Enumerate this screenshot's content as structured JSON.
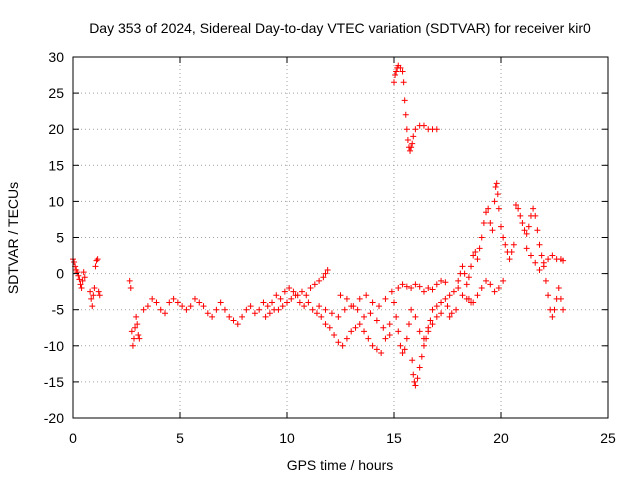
{
  "chart_data": {
    "type": "scatter",
    "title": "Day 353 of 2024, Sidereal Day-to-day VTEC variation (SDTVAR) for receiver kir0",
    "xlabel": "GPS time / hours",
    "ylabel": "SDTVAR / TECUs",
    "xlim": [
      0,
      25
    ],
    "ylim": [
      -20,
      30
    ],
    "xticks": [
      0,
      5,
      10,
      15,
      20,
      25
    ],
    "yticks": [
      -20,
      -15,
      -10,
      -5,
      0,
      5,
      10,
      15,
      20,
      25,
      30
    ],
    "x_tick_labels": [
      "0",
      "5",
      "10",
      "15",
      "20",
      "25"
    ],
    "y_tick_labels": [
      "-20",
      "-15",
      "-10",
      "-5",
      "0",
      "5",
      "10",
      "15",
      "20",
      "25",
      "30"
    ],
    "grid": true,
    "marker": "+",
    "color": "#ff0000",
    "series": [
      {
        "name": "kir0",
        "points": [
          [
            0.0,
            2.0
          ],
          [
            0.05,
            1.6
          ],
          [
            0.1,
            1.0
          ],
          [
            0.15,
            0.5
          ],
          [
            0.2,
            0.2
          ],
          [
            0.25,
            -0.3
          ],
          [
            0.3,
            -0.8
          ],
          [
            0.35,
            -1.5
          ],
          [
            0.4,
            -2.0
          ],
          [
            0.45,
            -1.0
          ],
          [
            0.5,
            0.2
          ],
          [
            0.55,
            -0.5
          ],
          [
            0.8,
            -2.5
          ],
          [
            0.85,
            -3.5
          ],
          [
            0.9,
            -4.5
          ],
          [
            0.95,
            -3.0
          ],
          [
            1.0,
            -2.0
          ],
          [
            1.05,
            1.0
          ],
          [
            1.1,
            1.8
          ],
          [
            1.15,
            2.0
          ],
          [
            1.2,
            -2.5
          ],
          [
            1.25,
            -3.0
          ],
          [
            2.65,
            -1.0
          ],
          [
            2.7,
            -2.0
          ],
          [
            2.75,
            -8.0
          ],
          [
            2.8,
            -10.0
          ],
          [
            2.85,
            -9.0
          ],
          [
            2.9,
            -7.5
          ],
          [
            2.95,
            -6.0
          ],
          [
            3.0,
            -7.0
          ],
          [
            3.05,
            -8.5
          ],
          [
            3.1,
            -9.0
          ],
          [
            3.3,
            -5.0
          ],
          [
            3.5,
            -4.5
          ],
          [
            3.7,
            -3.5
          ],
          [
            3.9,
            -4.0
          ],
          [
            4.1,
            -5.0
          ],
          [
            4.3,
            -5.5
          ],
          [
            4.5,
            -4.0
          ],
          [
            4.7,
            -3.5
          ],
          [
            4.9,
            -4.0
          ],
          [
            5.1,
            -4.5
          ],
          [
            5.3,
            -5.0
          ],
          [
            5.5,
            -4.5
          ],
          [
            5.7,
            -3.5
          ],
          [
            5.9,
            -4.0
          ],
          [
            6.1,
            -4.5
          ],
          [
            6.3,
            -5.5
          ],
          [
            6.5,
            -6.0
          ],
          [
            6.7,
            -5.0
          ],
          [
            6.9,
            -4.0
          ],
          [
            7.1,
            -5.0
          ],
          [
            7.3,
            -6.0
          ],
          [
            7.5,
            -6.5
          ],
          [
            7.7,
            -7.0
          ],
          [
            7.9,
            -6.0
          ],
          [
            8.1,
            -5.0
          ],
          [
            8.3,
            -4.5
          ],
          [
            8.5,
            -5.5
          ],
          [
            8.7,
            -5.0
          ],
          [
            8.9,
            -4.0
          ],
          [
            9.1,
            -4.5
          ],
          [
            9.3,
            -4.0
          ],
          [
            9.5,
            -3.0
          ],
          [
            9.7,
            -3.5
          ],
          [
            9.9,
            -2.5
          ],
          [
            10.1,
            -2.0
          ],
          [
            10.3,
            -2.5
          ],
          [
            10.5,
            -3.0
          ],
          [
            10.7,
            -2.5
          ],
          [
            10.9,
            -3.0
          ],
          [
            11.1,
            -2.0
          ],
          [
            11.3,
            -1.5
          ],
          [
            11.5,
            -1.0
          ],
          [
            11.7,
            -0.5
          ],
          [
            11.8,
            0.0
          ],
          [
            11.9,
            0.5
          ],
          [
            9.0,
            -6.0
          ],
          [
            9.2,
            -5.5
          ],
          [
            9.4,
            -5.0
          ],
          [
            9.6,
            -5.0
          ],
          [
            9.8,
            -4.5
          ],
          [
            10.0,
            -4.0
          ],
          [
            10.2,
            -3.5
          ],
          [
            10.4,
            -3.0
          ],
          [
            10.6,
            -4.0
          ],
          [
            10.8,
            -4.5
          ],
          [
            11.0,
            -4.0
          ],
          [
            11.2,
            -5.0
          ],
          [
            11.4,
            -5.5
          ],
          [
            11.6,
            -6.0
          ],
          [
            11.8,
            -7.0
          ],
          [
            12.0,
            -7.5
          ],
          [
            12.2,
            -8.5
          ],
          [
            12.4,
            -9.5
          ],
          [
            12.6,
            -10.0
          ],
          [
            12.8,
            -9.0
          ],
          [
            13.0,
            -8.0
          ],
          [
            13.2,
            -7.5
          ],
          [
            11.5,
            -4.5
          ],
          [
            11.8,
            -5.0
          ],
          [
            12.1,
            -5.5
          ],
          [
            12.4,
            -6.0
          ],
          [
            12.7,
            -5.0
          ],
          [
            13.0,
            -4.5
          ],
          [
            13.3,
            -5.0
          ],
          [
            13.6,
            -6.0
          ],
          [
            13.9,
            -5.5
          ],
          [
            14.2,
            -6.5
          ],
          [
            14.5,
            -7.5
          ],
          [
            14.8,
            -8.5
          ],
          [
            13.4,
            -7.0
          ],
          [
            13.6,
            -8.0
          ],
          [
            13.8,
            -9.0
          ],
          [
            14.0,
            -10.0
          ],
          [
            14.2,
            -10.5
          ],
          [
            14.4,
            -11.0
          ],
          [
            14.6,
            -9.0
          ],
          [
            14.8,
            -7.0
          ],
          [
            12.5,
            -3.0
          ],
          [
            12.8,
            -3.5
          ],
          [
            13.1,
            -4.5
          ],
          [
            13.4,
            -3.5
          ],
          [
            13.7,
            -3.0
          ],
          [
            14.0,
            -4.0
          ],
          [
            14.3,
            -4.5
          ],
          [
            14.6,
            -3.5
          ],
          [
            14.9,
            -2.5
          ],
          [
            15.0,
            -4.0
          ],
          [
            15.1,
            -6.0
          ],
          [
            15.2,
            -8.0
          ],
          [
            15.3,
            -10.0
          ],
          [
            15.4,
            -11.0
          ],
          [
            15.5,
            -10.5
          ],
          [
            15.6,
            -9.0
          ],
          [
            15.7,
            -7.0
          ],
          [
            15.2,
            -2.0
          ],
          [
            15.4,
            -1.5
          ],
          [
            15.6,
            -1.8
          ],
          [
            15.8,
            -2.0
          ],
          [
            16.0,
            -1.5
          ],
          [
            16.2,
            -1.8
          ],
          [
            16.4,
            -2.5
          ],
          [
            16.6,
            -2.0
          ],
          [
            16.8,
            -2.2
          ],
          [
            17.0,
            -1.5
          ],
          [
            17.2,
            -1.0
          ],
          [
            17.4,
            -1.2
          ],
          [
            15.8,
            -5.0
          ],
          [
            16.0,
            -6.0
          ],
          [
            16.2,
            -8.0
          ],
          [
            16.4,
            -9.0
          ],
          [
            16.6,
            -8.0
          ],
          [
            16.8,
            -7.0
          ],
          [
            17.0,
            -6.0
          ],
          [
            17.2,
            -5.5
          ],
          [
            15.85,
            -12.0
          ],
          [
            15.9,
            -14.0
          ],
          [
            15.95,
            -15.0
          ],
          [
            16.0,
            -15.5
          ],
          [
            16.1,
            -14.5
          ],
          [
            16.2,
            -13.0
          ],
          [
            16.3,
            -11.5
          ],
          [
            16.4,
            -10.0
          ],
          [
            16.5,
            -9.0
          ],
          [
            16.6,
            -7.5
          ],
          [
            16.7,
            -6.5
          ],
          [
            16.8,
            -5.0
          ],
          [
            17.0,
            -4.5
          ],
          [
            17.2,
            -4.0
          ],
          [
            17.4,
            -3.5
          ],
          [
            17.6,
            -3.0
          ],
          [
            17.8,
            -2.5
          ],
          [
            18.0,
            -2.0
          ],
          [
            18.2,
            -3.0
          ],
          [
            18.4,
            -3.5
          ],
          [
            18.6,
            -4.0
          ],
          [
            17.5,
            -4.5
          ],
          [
            17.6,
            -6.0
          ],
          [
            17.7,
            -5.5
          ],
          [
            17.9,
            -5.0
          ],
          [
            15.0,
            26.5
          ],
          [
            15.05,
            27.5
          ],
          [
            15.1,
            28.0
          ],
          [
            15.15,
            28.5
          ],
          [
            15.2,
            28.8
          ],
          [
            15.3,
            28.5
          ],
          [
            15.4,
            28.0
          ],
          [
            15.45,
            26.5
          ],
          [
            15.5,
            24.0
          ],
          [
            15.55,
            22.0
          ],
          [
            15.6,
            20.0
          ],
          [
            15.65,
            18.5
          ],
          [
            15.7,
            17.5
          ],
          [
            15.75,
            17.0
          ],
          [
            15.8,
            17.5
          ],
          [
            15.85,
            18.0
          ],
          [
            15.9,
            19.0
          ],
          [
            16.0,
            20.0
          ],
          [
            16.2,
            20.5
          ],
          [
            16.4,
            20.5
          ],
          [
            16.6,
            20.0
          ],
          [
            16.8,
            20.0
          ],
          [
            17.0,
            20.0
          ],
          [
            18.0,
            -1.0
          ],
          [
            18.1,
            0.0
          ],
          [
            18.2,
            1.0
          ],
          [
            18.3,
            0.0
          ],
          [
            18.4,
            -1.5
          ],
          [
            18.5,
            -0.5
          ],
          [
            18.6,
            1.0
          ],
          [
            18.7,
            2.5
          ],
          [
            18.8,
            3.0
          ],
          [
            18.9,
            2.0
          ],
          [
            19.0,
            3.5
          ],
          [
            19.1,
            5.0
          ],
          [
            19.2,
            7.0
          ],
          [
            19.3,
            8.5
          ],
          [
            19.4,
            9.0
          ],
          [
            19.5,
            7.0
          ],
          [
            19.6,
            6.0
          ],
          [
            19.7,
            10.0
          ],
          [
            19.75,
            12.0
          ],
          [
            19.8,
            12.5
          ],
          [
            19.85,
            11.0
          ],
          [
            19.9,
            9.0
          ],
          [
            20.0,
            6.5
          ],
          [
            20.1,
            5.0
          ],
          [
            20.2,
            4.0
          ],
          [
            20.3,
            3.0
          ],
          [
            20.4,
            2.0
          ],
          [
            20.5,
            3.0
          ],
          [
            20.6,
            4.0
          ],
          [
            20.7,
            9.5
          ],
          [
            20.8,
            9.0
          ],
          [
            20.9,
            8.0
          ],
          [
            21.0,
            7.0
          ],
          [
            21.1,
            6.0
          ],
          [
            21.2,
            5.5
          ],
          [
            21.3,
            6.5
          ],
          [
            21.4,
            8.0
          ],
          [
            21.5,
            9.0
          ],
          [
            21.6,
            8.0
          ],
          [
            21.7,
            6.0
          ],
          [
            21.8,
            4.0
          ],
          [
            21.9,
            2.5
          ],
          [
            22.0,
            1.0
          ],
          [
            22.1,
            -1.0
          ],
          [
            22.2,
            -3.0
          ],
          [
            22.3,
            -5.0
          ],
          [
            22.4,
            -6.0
          ],
          [
            22.5,
            -5.0
          ],
          [
            22.6,
            -3.5
          ],
          [
            22.7,
            -2.0
          ],
          [
            22.8,
            -3.5
          ],
          [
            22.9,
            -5.0
          ],
          [
            21.2,
            3.5
          ],
          [
            21.4,
            2.5
          ],
          [
            21.6,
            1.5
          ],
          [
            21.8,
            0.5
          ],
          [
            22.0,
            1.5
          ],
          [
            22.2,
            2.0
          ],
          [
            22.4,
            2.5
          ],
          [
            22.6,
            2.0
          ],
          [
            22.8,
            2.0
          ],
          [
            22.9,
            1.8
          ],
          [
            18.5,
            -3.5
          ],
          [
            18.7,
            -4.0
          ],
          [
            18.9,
            -3.0
          ],
          [
            19.1,
            -2.0
          ],
          [
            19.3,
            -1.0
          ],
          [
            19.5,
            -1.5
          ],
          [
            19.7,
            -2.5
          ],
          [
            19.9,
            -2.0
          ],
          [
            20.1,
            -1.0
          ]
        ]
      }
    ]
  }
}
